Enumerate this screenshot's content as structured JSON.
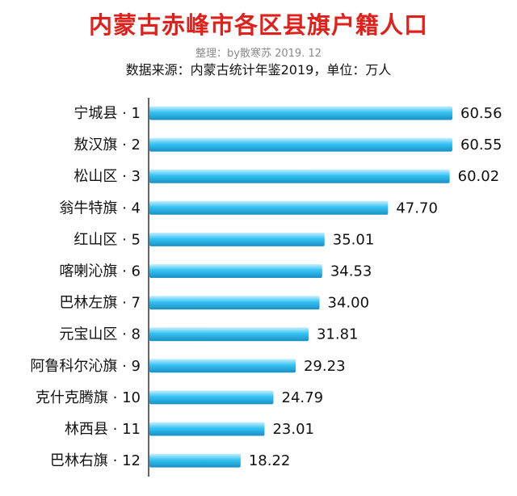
{
  "header": {
    "title": "内蒙古赤峰市各区县旗户籍人口",
    "author": "整理：by散寒苏  2019. 12",
    "source": "数据来源：内蒙古统计年鉴2019，单位：万人"
  },
  "colors": {
    "title": "#e0201b",
    "bar_light": "#c8f0ff",
    "bar_mid": "#35c3f3",
    "bar_dark": "#1a8fc4",
    "axis": "#333333"
  },
  "chart_data": {
    "type": "bar",
    "orientation": "horizontal",
    "title": "内蒙古赤峰市各区县旗户籍人口",
    "xlabel": "",
    "ylabel": "",
    "unit": "万人",
    "xlim": [
      0,
      60.56
    ],
    "grid": false,
    "categories": [
      "宁城县 · 1",
      "敖汉旗 · 2",
      "松山区 · 3",
      "翁牛特旗 · 4",
      "红山区 · 5",
      "喀喇沁旗 · 6",
      "巴林左旗 · 7",
      "元宝山区 · 8",
      "阿鲁科尔沁旗 · 9",
      "克什克腾旗 · 10",
      "林西县 · 11",
      "巴林右旗 · 12"
    ],
    "values": [
      60.56,
      60.55,
      60.02,
      47.7,
      35.01,
      34.53,
      34.0,
      31.81,
      29.23,
      24.79,
      23.01,
      18.22
    ],
    "value_labels": [
      "60.56",
      "60.55",
      "60.02",
      "47.70",
      "35.01",
      "34.53",
      "34.00",
      "31.81",
      "29.23",
      "24.79",
      "23.01",
      "18.22"
    ]
  }
}
